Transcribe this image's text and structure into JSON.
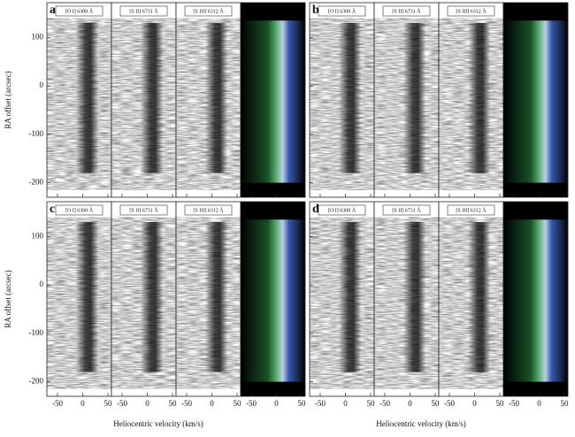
{
  "chart_data": {
    "type": "pv-diagram",
    "ylabel": "RA offset (arcsec)",
    "xlabel": "Heliocentric velocity (km/s)",
    "ylim": [
      -230,
      172
    ],
    "yticks": [
      100,
      0,
      -100,
      -200
    ],
    "xlim": [
      -71,
      57
    ],
    "xticks": [
      -50,
      0,
      50
    ],
    "lines": [
      "[O I] 6300 Å",
      "[S II] 6731 Å",
      "[S III] 6312 Å"
    ],
    "panels": [
      "a",
      "b",
      "c",
      "d"
    ]
  }
}
